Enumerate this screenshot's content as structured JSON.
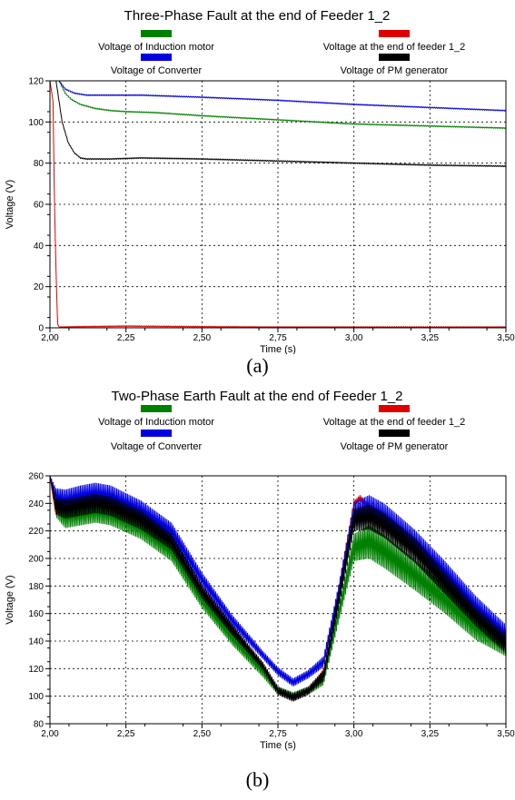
{
  "chart_data": [
    {
      "type": "line",
      "title": "Three-Phase Fault at the end of Feeder 1_2",
      "xlabel": "Time (s)",
      "ylabel": "Voltage (V)",
      "xlim": [
        2.0,
        3.5
      ],
      "ylim": [
        0,
        120
      ],
      "xticks": [
        "2,00",
        "2,25",
        "2,50",
        "2,75",
        "3,00",
        "3,25",
        "3,50"
      ],
      "yticks": [
        "0",
        "20",
        "40",
        "60",
        "80",
        "100",
        "120"
      ],
      "grid": true,
      "legend_position": "top",
      "caption": "(a)",
      "series": [
        {
          "name": "Voltage of Induction motor",
          "color": "#008000",
          "x": [
            2.03,
            2.05,
            2.07,
            2.1,
            2.15,
            2.2,
            2.25,
            2.35,
            2.5,
            2.75,
            3.0,
            3.25,
            3.5
          ],
          "y": [
            120,
            114,
            111,
            108.5,
            106.5,
            105.5,
            105,
            104.5,
            103,
            101,
            99,
            98,
            97
          ]
        },
        {
          "name": "Voltage at the end of feeder 1_2",
          "color": "#e00000",
          "x": [
            2.0,
            2.01,
            2.015,
            2.02,
            2.025,
            2.03,
            2.1,
            2.25,
            2.5,
            2.75,
            3.0,
            3.25,
            3.5
          ],
          "y": [
            120,
            110,
            60,
            28,
            2,
            0.3,
            0.5,
            0.8,
            0.5,
            0.3,
            0.3,
            0.3,
            0.3
          ]
        },
        {
          "name": "Voltage of Converter",
          "color": "#0000e0",
          "x": [
            2.03,
            2.05,
            2.08,
            2.12,
            2.2,
            2.3,
            2.5,
            2.75,
            3.0,
            3.25,
            3.5
          ],
          "y": [
            120,
            116,
            114,
            113,
            113,
            113,
            112,
            110.5,
            108.5,
            107,
            105.5
          ]
        },
        {
          "name": "Voltage of PM generator",
          "color": "#000000",
          "x": [
            2.02,
            2.04,
            2.06,
            2.08,
            2.1,
            2.12,
            2.2,
            2.3,
            2.5,
            2.75,
            3.0,
            3.25,
            3.5
          ],
          "y": [
            120,
            100,
            90,
            85,
            82.5,
            82,
            82,
            82.5,
            82,
            81,
            80,
            79,
            78.5
          ]
        }
      ]
    },
    {
      "type": "line",
      "title": "Two-Phase Earth Fault at the end of Feeder 1_2",
      "xlabel": "Time (s)",
      "ylabel": "Voltage (V)",
      "xlim": [
        2.0,
        3.5
      ],
      "ylim": [
        80,
        260
      ],
      "xticks": [
        "2,00",
        "2,25",
        "2,50",
        "2,75",
        "3,00",
        "3,25",
        "3,50"
      ],
      "yticks": [
        "80",
        "100",
        "120",
        "140",
        "160",
        "180",
        "200",
        "220",
        "240",
        "260"
      ],
      "grid": true,
      "legend_position": "top",
      "caption": "(b)",
      "series": [
        {
          "name": "Voltage of Induction motor",
          "color": "#008000",
          "x": [
            2.0,
            2.02,
            2.05,
            2.1,
            2.15,
            2.2,
            2.3,
            2.4,
            2.5,
            2.6,
            2.7,
            2.75,
            2.8,
            2.85,
            2.9,
            2.95,
            3.0,
            3.05,
            3.1,
            3.2,
            3.3,
            3.4,
            3.5
          ],
          "y": [
            260,
            235,
            230,
            232,
            234,
            232,
            222,
            205,
            170,
            142,
            118,
            104,
            100,
            104,
            112,
            160,
            208,
            212,
            205,
            188,
            170,
            150,
            137
          ],
          "amp": [
            0,
            5,
            8,
            8,
            8,
            8,
            8,
            7,
            6,
            5,
            4,
            3,
            3,
            3,
            4,
            6,
            10,
            12,
            12,
            11,
            10,
            9,
            8
          ]
        },
        {
          "name": "Voltage at the end of feeder 1_2",
          "color": "#e00000",
          "x": [
            2.0,
            2.01,
            2.02,
            2.05,
            2.1,
            2.15,
            2.2,
            2.3,
            2.4,
            2.5,
            2.6,
            2.7,
            2.75,
            2.8,
            2.85,
            2.9,
            2.95,
            3.0,
            3.02,
            3.05,
            3.1,
            3.2,
            3.3,
            3.4,
            3.5
          ],
          "y": [
            260,
            245,
            232,
            236,
            240,
            240,
            236,
            227,
            212,
            178,
            150,
            122,
            104,
            98,
            104,
            118,
            178,
            240,
            244,
            238,
            230,
            210,
            187,
            163,
            140
          ],
          "amp": [
            0,
            0,
            0,
            2,
            2,
            2,
            2,
            2,
            2,
            2,
            2,
            1,
            1,
            1,
            1,
            2,
            3,
            2,
            2,
            2,
            2,
            2,
            2,
            2,
            2
          ]
        },
        {
          "name": "Voltage of Converter",
          "color": "#0000e0",
          "x": [
            2.0,
            2.02,
            2.05,
            2.1,
            2.15,
            2.2,
            2.3,
            2.4,
            2.5,
            2.6,
            2.7,
            2.75,
            2.8,
            2.85,
            2.9,
            2.95,
            3.0,
            3.05,
            3.1,
            3.2,
            3.3,
            3.4,
            3.5
          ],
          "y": [
            260,
            245,
            242,
            245,
            247,
            245,
            235,
            220,
            185,
            155,
            130,
            118,
            110,
            116,
            125,
            175,
            232,
            236,
            230,
            212,
            190,
            165,
            145
          ],
          "amp": [
            0,
            6,
            8,
            8,
            8,
            8,
            7,
            6,
            5,
            4,
            3,
            3,
            3,
            3,
            4,
            6,
            9,
            10,
            10,
            9,
            8,
            8,
            7
          ]
        },
        {
          "name": "Voltage of PM generator",
          "color": "#000000",
          "x": [
            2.0,
            2.02,
            2.05,
            2.1,
            2.15,
            2.2,
            2.3,
            2.4,
            2.5,
            2.6,
            2.7,
            2.75,
            2.8,
            2.85,
            2.9,
            2.95,
            3.0,
            3.05,
            3.1,
            3.2,
            3.3,
            3.4,
            3.5
          ],
          "y": [
            260,
            238,
            236,
            238,
            240,
            238,
            228,
            212,
            176,
            148,
            122,
            104,
            99,
            104,
            115,
            170,
            228,
            230,
            224,
            206,
            182,
            158,
            138
          ],
          "amp": [
            0,
            6,
            7,
            7,
            7,
            7,
            7,
            6,
            5,
            4,
            3,
            3,
            3,
            3,
            4,
            6,
            8,
            9,
            9,
            9,
            8,
            7,
            7
          ]
        }
      ]
    }
  ]
}
